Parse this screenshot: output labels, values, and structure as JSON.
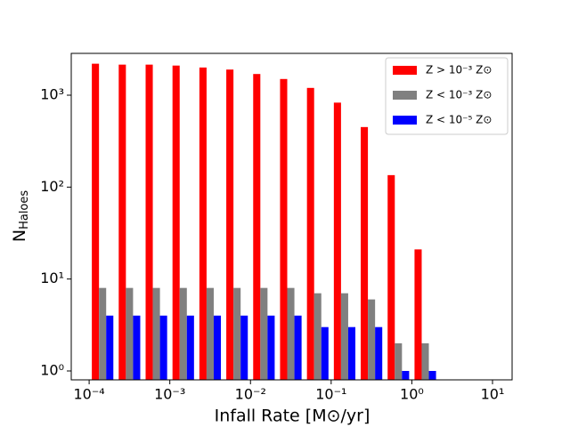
{
  "chart_data": {
    "type": "histogram",
    "xlabel": "Infall Rate [M⊙/yr]",
    "ylabel": "N",
    "ylabel_subscript": "Haloes",
    "bins": [
      0.0001,
      0.0002154,
      0.0004642,
      0.001,
      0.002154,
      0.004642,
      0.01,
      0.02154,
      0.04642,
      0.1,
      0.2154,
      0.4642,
      1,
      2.154
    ],
    "series": [
      {
        "name": "Z > 10⁻³ Z⊙",
        "color": "#ff0000",
        "values": [
          2200,
          2150,
          2150,
          2100,
          2000,
          1900,
          1700,
          1500,
          1200,
          830,
          450,
          135,
          21
        ]
      },
      {
        "name": "Z < 10⁻³ Z⊙",
        "color": "#808080",
        "values": [
          8,
          8,
          8,
          8,
          8,
          8,
          8,
          8,
          7,
          7,
          6,
          2,
          2
        ]
      },
      {
        "name": "Z < 10⁻⁵ Z⊙",
        "color": "#0000ff",
        "values": [
          4,
          4,
          4,
          4,
          4,
          4,
          4,
          4,
          3,
          3,
          3,
          1,
          1
        ]
      }
    ],
    "xscale": "log",
    "yscale": "log",
    "xlim": [
      6e-05,
      17.5
    ],
    "ylim": [
      0.8,
      2850
    ],
    "xticks": [
      {
        "value": 0.0001,
        "label": "10⁻⁴"
      },
      {
        "value": 0.001,
        "label": "10⁻³"
      },
      {
        "value": 0.01,
        "label": "10⁻²"
      },
      {
        "value": 0.1,
        "label": "10⁻¹"
      },
      {
        "value": 1,
        "label": "10⁰"
      },
      {
        "value": 10,
        "label": "10¹"
      }
    ],
    "yticks": [
      {
        "value": 1,
        "label": "10⁰"
      },
      {
        "value": 10,
        "label": "10¹"
      },
      {
        "value": 100,
        "label": "10²"
      },
      {
        "value": 1000,
        "label": "10³"
      }
    ],
    "legend": "upper right"
  }
}
